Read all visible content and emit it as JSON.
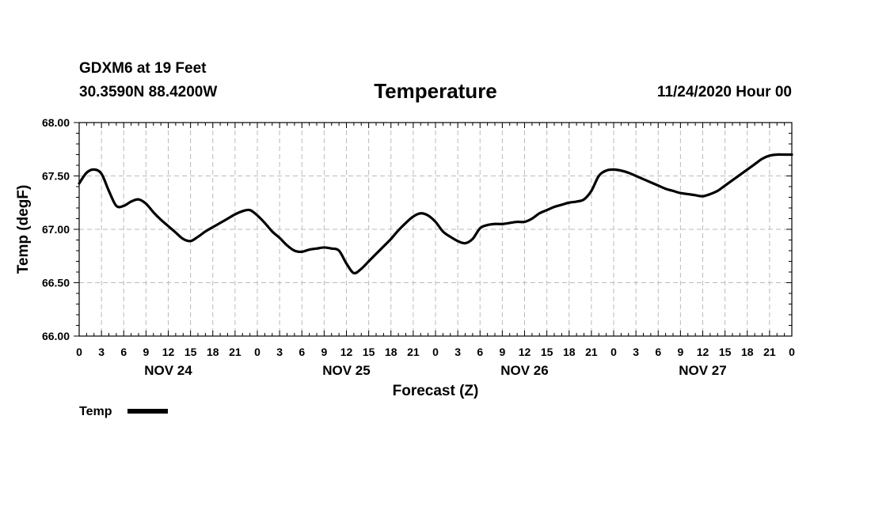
{
  "header": {
    "station": "GDXM6 at 19 Feet",
    "coords": "30.3590N 88.4200W",
    "run_time": "11/24/2020 Hour 00"
  },
  "colors": {
    "line": "#000000",
    "grid": "#bbbbbb",
    "axis": "#000000"
  },
  "chart_data": {
    "type": "line",
    "title": "Temperature",
    "xlabel": "Forecast (Z)",
    "ylabel": "Temp (degF)",
    "xlim": [
      0,
      96
    ],
    "ylim": [
      66.0,
      68.0
    ],
    "y_ticks": [
      "66.00",
      "66.50",
      "67.00",
      "67.50",
      "68.00"
    ],
    "y_tick_values": [
      66.0,
      66.5,
      67.0,
      67.5,
      68.0
    ],
    "x_tick_hours": [
      0,
      3,
      6,
      9,
      12,
      15,
      18,
      21,
      24,
      27,
      30,
      33,
      36,
      39,
      42,
      45,
      48,
      51,
      54,
      57,
      60,
      63,
      66,
      69,
      72,
      75,
      78,
      81,
      84,
      87,
      90,
      93,
      96
    ],
    "x_tick_labels": [
      "0",
      "3",
      "6",
      "9",
      "12",
      "15",
      "18",
      "21",
      "0",
      "3",
      "6",
      "9",
      "12",
      "15",
      "18",
      "21",
      "0",
      "3",
      "6",
      "9",
      "12",
      "15",
      "18",
      "21",
      "0",
      "3",
      "6",
      "9",
      "12",
      "15",
      "18",
      "21",
      "0"
    ],
    "dates": [
      {
        "label": "NOV 24",
        "hour": 12
      },
      {
        "label": "NOV 25",
        "hour": 36
      },
      {
        "label": "NOV 26",
        "hour": 60
      },
      {
        "label": "NOV 27",
        "hour": 84
      }
    ],
    "grid": true,
    "legend_position": "bottom-left",
    "series": [
      {
        "name": "Temp",
        "x": [
          0,
          1,
          2,
          3,
          4,
          5,
          6,
          7,
          8,
          9,
          10,
          11,
          12,
          13,
          14,
          15,
          16,
          17,
          18,
          19,
          20,
          21,
          22,
          23,
          24,
          25,
          26,
          27,
          28,
          29,
          30,
          31,
          32,
          33,
          34,
          35,
          36,
          37,
          38,
          39,
          40,
          41,
          42,
          43,
          44,
          45,
          46,
          47,
          48,
          49,
          50,
          51,
          52,
          53,
          54,
          55,
          56,
          57,
          58,
          59,
          60,
          61,
          62,
          63,
          64,
          65,
          66,
          67,
          68,
          69,
          70,
          71,
          72,
          73,
          74,
          75,
          76,
          77,
          78,
          79,
          80,
          81,
          82,
          83,
          84,
          85,
          86,
          87,
          88,
          89,
          90,
          91,
          92,
          93,
          94,
          95,
          96
        ],
        "values": [
          67.43,
          67.53,
          67.56,
          67.52,
          67.36,
          67.22,
          67.22,
          67.26,
          67.28,
          67.24,
          67.16,
          67.09,
          67.03,
          66.97,
          66.91,
          66.89,
          66.93,
          66.98,
          67.02,
          67.06,
          67.1,
          67.14,
          67.17,
          67.18,
          67.13,
          67.06,
          66.98,
          66.92,
          66.85,
          66.8,
          66.79,
          66.81,
          66.82,
          66.83,
          66.82,
          66.8,
          66.68,
          66.59,
          66.63,
          66.7,
          66.77,
          66.84,
          66.91,
          66.99,
          67.06,
          67.12,
          67.15,
          67.13,
          67.07,
          66.98,
          66.93,
          66.89,
          66.87,
          66.91,
          67.01,
          67.04,
          67.05,
          67.05,
          67.06,
          67.07,
          67.07,
          67.1,
          67.15,
          67.18,
          67.21,
          67.23,
          67.25,
          67.26,
          67.28,
          67.36,
          67.5,
          67.55,
          67.56,
          67.55,
          67.53,
          67.5,
          67.47,
          67.44,
          67.41,
          67.38,
          67.36,
          67.34,
          67.33,
          67.32,
          67.31,
          67.33,
          67.36,
          67.41,
          67.46,
          67.51,
          67.56,
          67.61,
          67.66,
          67.69,
          67.7,
          67.7,
          67.7
        ]
      }
    ]
  }
}
